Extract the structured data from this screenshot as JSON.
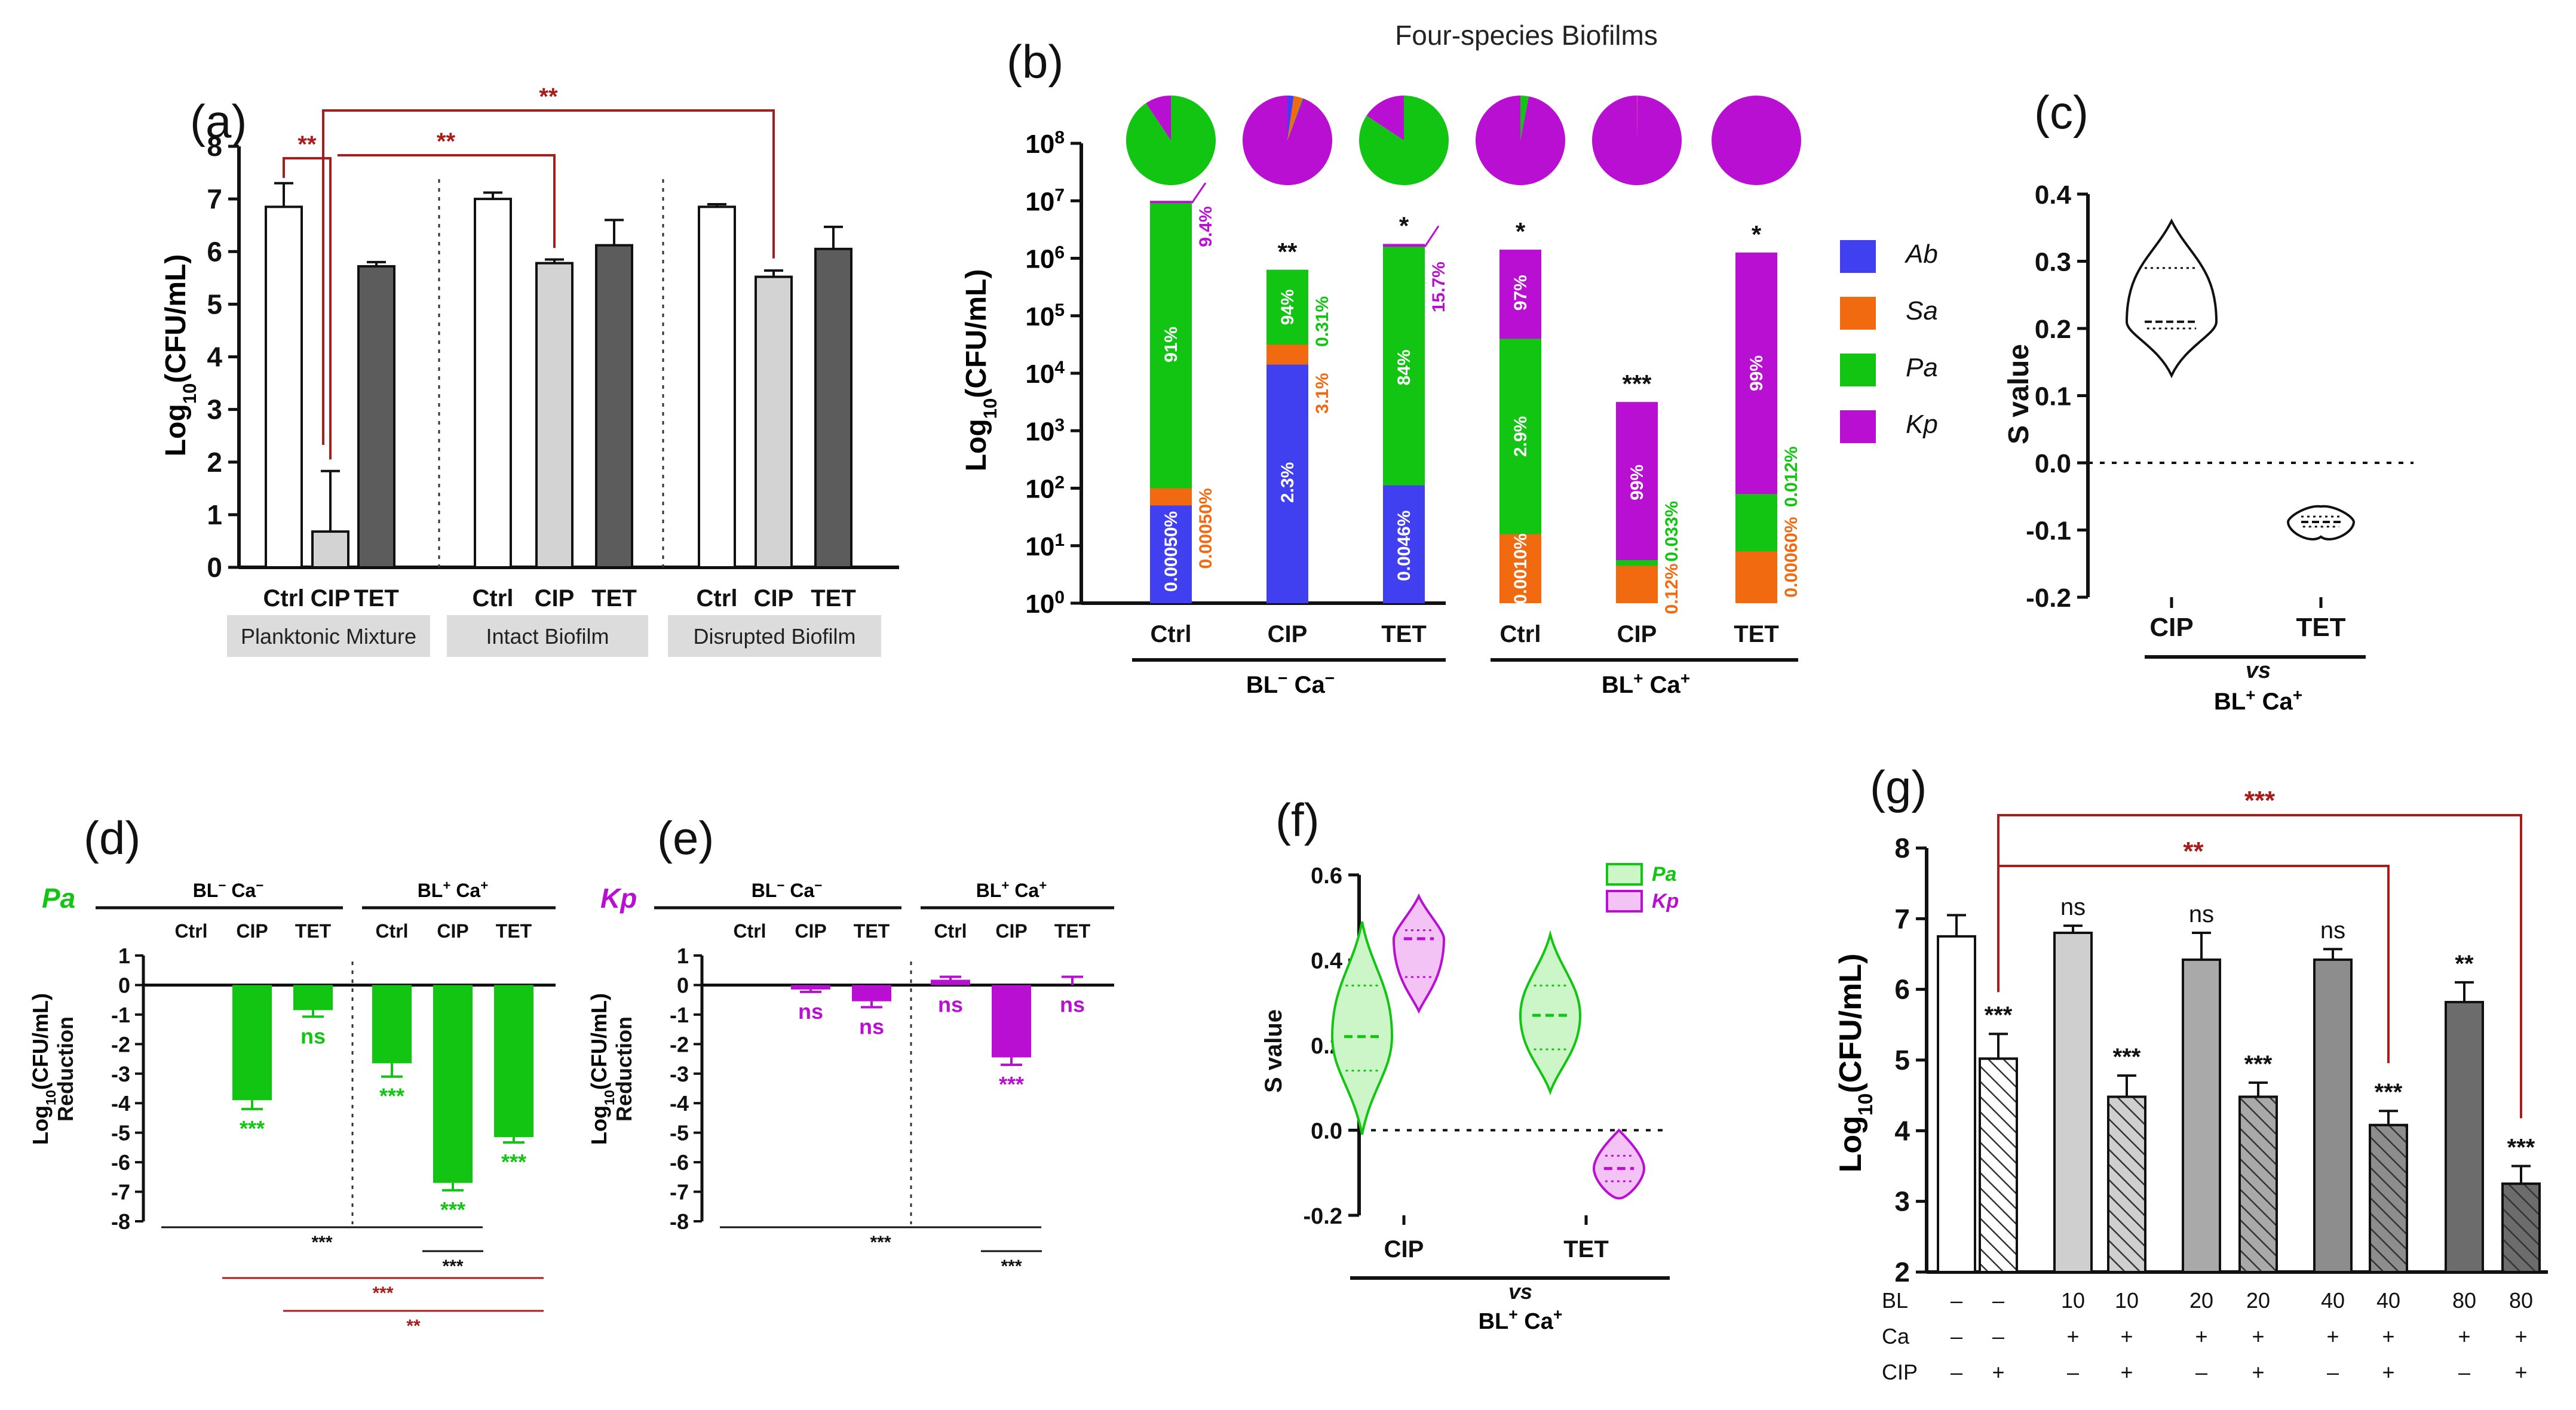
{
  "figure_title": "Four-species Biofilms",
  "colors": {
    "ab": "#4040f0",
    "sa": "#f26a10",
    "pa": "#12c512",
    "kp": "#b80fd2",
    "sig": "#a81c1c",
    "black": "#111111",
    "grey_light": "#d3d3d3",
    "grey_mid": "#bdbdbd",
    "grey_dark": "#5c5c5c",
    "group_box": "#dcdcdc",
    "pa_light": "#ccf5c8",
    "kp_light": "#f2c3f4"
  },
  "chart_data": [
    {
      "id": "a",
      "panel_label": "(a)",
      "type": "bar",
      "ylabel": "Log10(CFU/mL)",
      "ylim": [
        0,
        8
      ],
      "yticks": [
        0,
        1,
        2,
        3,
        4,
        5,
        6,
        7,
        8
      ],
      "groups": [
        "Planktonic Mixture",
        "Intact Biofilm",
        "Disrupted Biofilm"
      ],
      "categories": [
        "Ctrl",
        "CIP",
        "TET",
        "Ctrl",
        "CIP",
        "TET",
        "Ctrl",
        "CIP",
        "TET"
      ],
      "values": [
        6.85,
        0.68,
        5.72,
        7.0,
        5.78,
        6.12,
        6.85,
        5.52,
        6.05
      ],
      "errors": [
        0.45,
        1.15,
        0.08,
        0.12,
        0.07,
        0.48,
        0.05,
        0.12,
        0.42
      ],
      "fills": [
        "white",
        "light",
        "dark",
        "white",
        "light",
        "dark",
        "white",
        "light",
        "dark"
      ],
      "significance": [
        {
          "from": 0,
          "to": 1,
          "label": "**"
        },
        {
          "from": 1,
          "to": 4,
          "label": "**"
        },
        {
          "from": 1,
          "to": 7,
          "label": "**"
        }
      ]
    },
    {
      "id": "b",
      "panel_label": "(b)",
      "type": "bar",
      "stacked": true,
      "yscale": "log",
      "ylabel": "Log10(CFU/mL)",
      "ylim": [
        1,
        100000000
      ],
      "yticks": [
        "100",
        "101",
        "102",
        "103",
        "104",
        "105",
        "106",
        "107",
        "108"
      ],
      "categories": [
        "Ctrl",
        "CIP",
        "TET",
        "Ctrl",
        "CIP",
        "TET"
      ],
      "groups": [
        "BL− Ca−",
        "BL+ Ca+"
      ],
      "legend": [
        "Ab",
        "Sa",
        "Pa",
        "Kp"
      ],
      "totals_log10": [
        7.0,
        5.8,
        6.25,
        6.15,
        3.5,
        6.1
      ],
      "series": [
        {
          "name": "Ab",
          "values_log10": [
            1.7,
            4.15,
            2.05,
            0,
            0,
            0
          ]
        },
        {
          "name": "Sa",
          "values_log10": [
            2.0,
            4.5,
            2.05,
            1.2,
            0.65,
            0.9
          ]
        },
        {
          "name": "Pa",
          "values_log10": [
            6.96,
            5.8,
            6.2,
            4.6,
            0.75,
            1.9
          ]
        },
        {
          "name": "Kp",
          "values_log10": [
            7.0,
            5.8,
            6.25,
            6.15,
            3.5,
            6.1
          ]
        }
      ],
      "segment_labels": [
        {
          "bar": 0,
          "text": "0.00050%",
          "color": "white",
          "pos": 0.9
        },
        {
          "bar": 0,
          "text": "91%",
          "color": "white",
          "pos": 4.5
        },
        {
          "bar": 1,
          "text": "2.3%",
          "color": "white",
          "pos": 2.1
        },
        {
          "bar": 1,
          "text": "94%",
          "color": "white",
          "pos": 5.15
        },
        {
          "bar": 2,
          "text": "0.0046%",
          "color": "white",
          "pos": 1.0
        },
        {
          "bar": 2,
          "text": "84%",
          "color": "white",
          "pos": 4.1
        },
        {
          "bar": 3,
          "text": "0.0010%",
          "color": "white",
          "pos": 0.6
        },
        {
          "bar": 3,
          "text": "2.9%",
          "color": "white",
          "pos": 2.9
        },
        {
          "bar": 3,
          "text": "97%",
          "color": "white",
          "pos": 5.4
        },
        {
          "bar": 4,
          "text": "99%",
          "color": "white",
          "pos": 2.1
        },
        {
          "bar": 5,
          "text": "99%",
          "color": "white",
          "pos": 4.0
        }
      ],
      "side_labels": [
        {
          "bar": 0,
          "text": "9.4%",
          "color": "kp",
          "pos": 6.55
        },
        {
          "bar": 0,
          "text": "0.00050%",
          "color": "sa",
          "pos": 1.3
        },
        {
          "bar": 1,
          "text": "0.31%",
          "color": "pa",
          "pos": 4.9
        },
        {
          "bar": 1,
          "text": "3.1%",
          "color": "sa",
          "pos": 3.65
        },
        {
          "bar": 2,
          "text": "15.7%",
          "color": "kp",
          "pos": 5.5
        },
        {
          "bar": 4,
          "text": "0.033%",
          "color": "pa",
          "pos": 1.25
        },
        {
          "bar": 4,
          "text": "0.12%",
          "color": "sa",
          "pos": 0.25
        },
        {
          "bar": 5,
          "text": "0.012%",
          "color": "pa",
          "pos": 2.2
        },
        {
          "bar": 5,
          "text": "0.00060%",
          "color": "sa",
          "pos": 0.8
        }
      ],
      "stars": [
        "",
        "**",
        "*",
        "*",
        "***",
        "*"
      ],
      "pies": [
        {
          "Ab": 0,
          "Sa": 0,
          "Pa": 90.6,
          "Kp": 9.4
        },
        {
          "Ab": 2.3,
          "Sa": 3.1,
          "Pa": 0.3,
          "Kp": 94.3
        },
        {
          "Ab": 0,
          "Sa": 0,
          "Pa": 84.3,
          "Kp": 15.7
        },
        {
          "Ab": 0,
          "Sa": 0,
          "Pa": 3,
          "Kp": 97
        },
        {
          "Ab": 0,
          "Sa": 0.12,
          "Pa": 0.03,
          "Kp": 99.85
        },
        {
          "Ab": 0,
          "Sa": 0,
          "Pa": 0,
          "Kp": 100
        }
      ]
    },
    {
      "id": "c",
      "panel_label": "(c)",
      "type": "violin",
      "ylabel": "S value",
      "ylim": [
        -0.2,
        0.4
      ],
      "yticks": [
        "-0.2",
        "-0.1",
        "0.0",
        "0.1",
        "0.2",
        "0.3",
        "0.4"
      ],
      "categories": [
        "CIP",
        "TET"
      ],
      "group_label_1": "vs",
      "group_label_2": "BL+ Ca+",
      "series": [
        {
          "name": "CIP",
          "min": 0.13,
          "q1": 0.2,
          "median": 0.21,
          "q3": 0.29,
          "max": 0.36
        },
        {
          "name": "TET",
          "min": -0.11,
          "q1": -0.095,
          "median": -0.088,
          "q3": -0.08,
          "max": -0.065
        }
      ]
    },
    {
      "id": "d",
      "panel_label": "(d)",
      "species_label": "Pa",
      "species_color": "pa",
      "type": "bar",
      "ylabel_1": "Log10(CFU/mL)",
      "ylabel_2": "Reduction",
      "ylim": [
        -8,
        1
      ],
      "yticks": [
        "-8",
        "-7",
        "-6",
        "-5",
        "-4",
        "-3",
        "-2",
        "-1",
        "0",
        "1"
      ],
      "categories": [
        "Ctrl",
        "CIP",
        "TET",
        "Ctrl",
        "CIP",
        "TET"
      ],
      "groups": [
        "BL− Ca−",
        "BL+ Ca+"
      ],
      "values": [
        0,
        -3.9,
        -0.85,
        -2.65,
        -6.7,
        -5.15
      ],
      "errors": [
        0,
        0.3,
        0.22,
        0.45,
        0.25,
        0.18
      ],
      "stars": [
        "",
        "***",
        "ns",
        "***",
        "***",
        "***"
      ],
      "brackets": [
        {
          "from": 0,
          "to": 4,
          "label": "***",
          "color": "black"
        },
        {
          "from": 3.5,
          "to": 4.5,
          "label": "***",
          "color": "black"
        },
        {
          "from": 1,
          "to": 5,
          "label": "***",
          "color": "sig"
        },
        {
          "from": 2,
          "to": 5,
          "label": "**",
          "color": "sig"
        }
      ]
    },
    {
      "id": "e",
      "panel_label": "(e)",
      "species_label": "Kp",
      "species_color": "kp",
      "type": "bar",
      "ylabel_1": "Log10(CFU/mL)",
      "ylabel_2": "Reduction",
      "ylim": [
        -8,
        1
      ],
      "yticks": [
        "-8",
        "-7",
        "-6",
        "-5",
        "-4",
        "-3",
        "-2",
        "-1",
        "0",
        "1"
      ],
      "categories": [
        "Ctrl",
        "CIP",
        "TET",
        "Ctrl",
        "CIP",
        "TET"
      ],
      "groups": [
        "BL− Ca−",
        "BL+ Ca+"
      ],
      "values": [
        0,
        -0.15,
        -0.55,
        0.18,
        -2.45,
        0.0
      ],
      "errors": [
        0,
        0.08,
        0.2,
        0.1,
        0.25,
        0.28
      ],
      "stars": [
        "",
        "ns",
        "ns",
        "ns",
        "***",
        "ns"
      ],
      "brackets": [
        {
          "from": 0,
          "to": 4,
          "label": "***",
          "color": "black"
        },
        {
          "from": 3.5,
          "to": 4.5,
          "label": "***",
          "color": "black"
        }
      ]
    },
    {
      "id": "f",
      "panel_label": "(f)",
      "type": "violin",
      "ylabel": "S value",
      "ylim": [
        -0.2,
        0.6
      ],
      "yticks": [
        "-0.2",
        "0.0",
        "0.2",
        "0.4",
        "0.6"
      ],
      "categories": [
        "CIP",
        "TET"
      ],
      "legend": [
        "Pa",
        "Kp"
      ],
      "group_label_1": "vs",
      "group_label_2": "BL+ Ca+",
      "series": [
        {
          "name": "Pa",
          "group": 0,
          "min": -0.01,
          "q1": 0.14,
          "median": 0.22,
          "q3": 0.34,
          "max": 0.49
        },
        {
          "name": "Kp",
          "group": 0,
          "min": 0.28,
          "q1": 0.36,
          "median": 0.45,
          "q3": 0.47,
          "max": 0.55
        },
        {
          "name": "Pa",
          "group": 1,
          "min": 0.09,
          "q1": 0.19,
          "median": 0.27,
          "q3": 0.34,
          "max": 0.46
        },
        {
          "name": "Kp",
          "group": 1,
          "min": -0.16,
          "q1": -0.12,
          "median": -0.09,
          "q3": -0.06,
          "max": -0.0
        }
      ]
    },
    {
      "id": "g",
      "panel_label": "(g)",
      "type": "bar",
      "ylabel": "Log10(CFU/mL)",
      "ylim": [
        2,
        8
      ],
      "yticks": [
        "2",
        "3",
        "4",
        "5",
        "6",
        "7",
        "8"
      ],
      "values": [
        6.75,
        5.02,
        6.8,
        4.48,
        6.42,
        4.48,
        6.42,
        4.08,
        5.82,
        3.25
      ],
      "errors": [
        0.3,
        0.35,
        0.1,
        0.3,
        0.38,
        0.2,
        0.15,
        0.2,
        0.28,
        0.25
      ],
      "fills": [
        "white",
        "hatch_white",
        "grey1",
        "hatch_grey1",
        "grey2",
        "hatch_grey2",
        "grey3",
        "hatch_grey3",
        "grey4",
        "hatch_grey4"
      ],
      "stars": [
        "",
        "***",
        "ns",
        "***",
        "ns",
        "***",
        "ns",
        "***",
        "**",
        "***"
      ],
      "row_labels": [
        "BL",
        "Ca",
        "CIP"
      ],
      "rows": [
        [
          "–",
          "–",
          "10",
          "10",
          "20",
          "20",
          "40",
          "40",
          "80",
          "80"
        ],
        [
          "–",
          "–",
          "+",
          "+",
          "+",
          "+",
          "+",
          "+",
          "+",
          "+"
        ],
        [
          "–",
          "+",
          "–",
          "+",
          "–",
          "+",
          "–",
          "+",
          "–",
          "+"
        ]
      ],
      "significance": [
        {
          "from": 1,
          "to": 7,
          "label": "**"
        },
        {
          "from": 1,
          "to": 9,
          "label": "***"
        }
      ]
    }
  ]
}
